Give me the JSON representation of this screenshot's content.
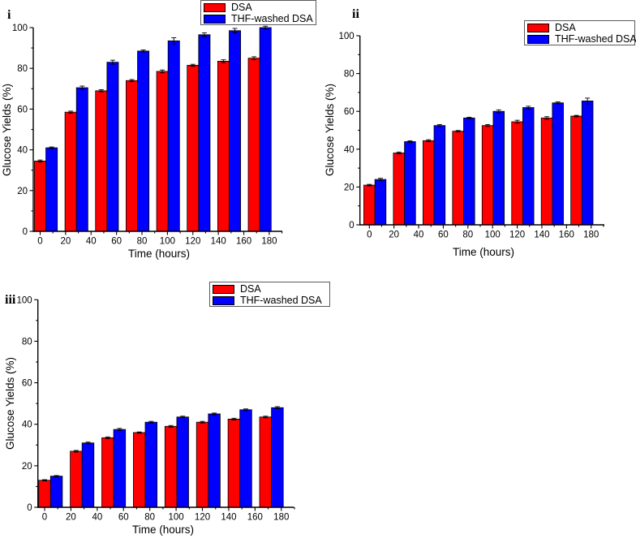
{
  "figure": {
    "background": "#ffffff",
    "description_colors": {
      "dsa_red": "#ff0000",
      "thf_blue": "#0000ff",
      "axis_black": "#000000"
    }
  },
  "chart_data": [
    {
      "type": "bar",
      "panel_label": "i",
      "xlabel": "Time (hours)",
      "ylabel": "Glucose Yields (%)",
      "xlim": [
        -6,
        190
      ],
      "ylim": [
        0,
        100
      ],
      "x_ticks": [
        0,
        20,
        40,
        60,
        80,
        100,
        120,
        140,
        160,
        180
      ],
      "y_ticks": [
        0,
        20,
        40,
        60,
        80,
        100
      ],
      "grid": false,
      "legend_position": "top-center",
      "categories_hours": [
        0,
        24,
        48,
        72,
        96,
        120,
        144,
        168
      ],
      "series": [
        {
          "name": "DSA",
          "color": "#ff0000",
          "values": [
            34.5,
            58.5,
            69,
            74,
            78.5,
            81.5,
            83.5,
            85
          ],
          "errors": [
            0.5,
            0.5,
            0.5,
            0.5,
            0.7,
            0.5,
            0.7,
            0.7
          ]
        },
        {
          "name": "THF-washed DSA",
          "color": "#0000ff",
          "values": [
            41,
            70.5,
            83,
            88.5,
            93.5,
            96.5,
            98.5,
            100
          ],
          "errors": [
            0.4,
            0.8,
            1.0,
            0.5,
            1.5,
            0.9,
            1.1,
            0.7
          ]
        }
      ]
    },
    {
      "type": "bar",
      "panel_label": "ii",
      "xlabel": "Time (hours)",
      "ylabel": "Glucose Yields (%)",
      "xlim": [
        -8,
        190
      ],
      "ylim": [
        0,
        100
      ],
      "x_ticks": [
        0,
        20,
        40,
        60,
        80,
        100,
        120,
        140,
        160,
        180
      ],
      "y_ticks": [
        0,
        20,
        40,
        60,
        80,
        100
      ],
      "grid": false,
      "legend_position": "top-right",
      "categories_hours": [
        0,
        24,
        48,
        72,
        96,
        120,
        144,
        168
      ],
      "series": [
        {
          "name": "DSA",
          "color": "#ff0000",
          "values": [
            21,
            38,
            44.5,
            49.5,
            52.5,
            54.5,
            56.5,
            57.5
          ],
          "errors": [
            0.4,
            0.5,
            0.5,
            0.4,
            0.5,
            0.8,
            0.7,
            0.4
          ]
        },
        {
          "name": "THF-washed DSA",
          "color": "#0000ff",
          "values": [
            24,
            44,
            52.5,
            56.5,
            60,
            62,
            64.5,
            65.5
          ],
          "errors": [
            0.6,
            0.4,
            0.5,
            0.4,
            0.8,
            0.7,
            0.5,
            1.5
          ]
        }
      ]
    },
    {
      "type": "bar",
      "panel_label": "iii",
      "xlabel": "Time (hours)",
      "ylabel": "Glucose Yields (%)",
      "xlim": [
        -6,
        190
      ],
      "ylim": [
        0,
        100
      ],
      "x_ticks": [
        0,
        20,
        40,
        60,
        80,
        100,
        120,
        140,
        160,
        180
      ],
      "y_ticks": [
        0,
        20,
        40,
        60,
        80,
        100
      ],
      "grid": false,
      "legend_position": "top-center",
      "categories_hours": [
        0,
        24,
        48,
        72,
        96,
        120,
        144,
        168
      ],
      "series": [
        {
          "name": "DSA",
          "color": "#ff0000",
          "values": [
            13,
            27,
            33.5,
            36,
            39,
            41,
            42.5,
            43.5
          ],
          "errors": [
            0.3,
            0.4,
            0.4,
            0.3,
            0.4,
            0.4,
            0.4,
            0.4
          ]
        },
        {
          "name": "THF-washed DSA",
          "color": "#0000ff",
          "values": [
            15,
            31,
            37.5,
            41,
            43.5,
            45,
            47,
            48
          ],
          "errors": [
            0.3,
            0.4,
            0.5,
            0.4,
            0.4,
            0.4,
            0.4,
            0.5
          ]
        }
      ]
    }
  ]
}
